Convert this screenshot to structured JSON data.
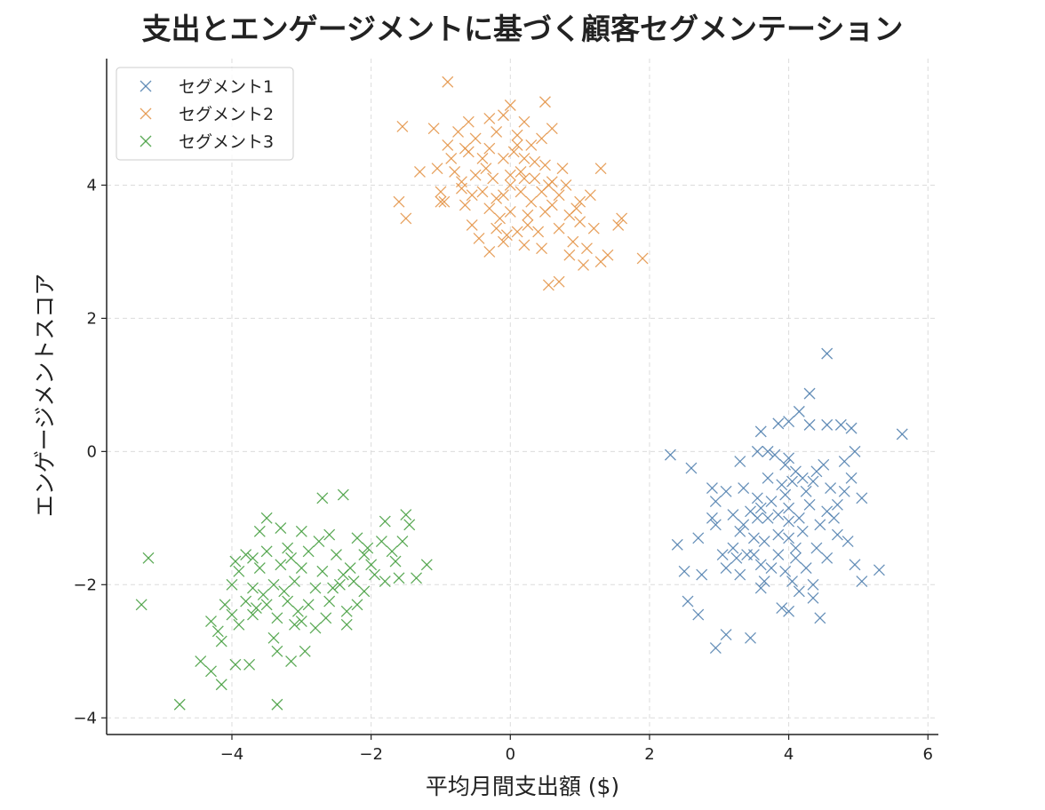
{
  "chart_data": {
    "type": "scatter",
    "title": "支出とエンゲージメントに基づく顧客セグメンテーション",
    "xlabel": "平均月間支出額 ($)",
    "ylabel": "エンゲージメントスコア",
    "xlim": [
      -5.8,
      6.15
    ],
    "ylim": [
      -4.25,
      5.9
    ],
    "xticks": [
      -4,
      -2,
      0,
      2,
      4,
      6
    ],
    "xtick_labels": [
      "−4",
      "−2",
      "0",
      "2",
      "4",
      "6"
    ],
    "yticks": [
      -4,
      -2,
      0,
      2,
      4
    ],
    "ytick_labels": [
      "−4",
      "−2",
      "0",
      "2",
      "4"
    ],
    "grid": true,
    "marker": "x",
    "legend_position": "upper-left",
    "series": [
      {
        "name": "セグメント1",
        "color": "#4c7cad",
        "points": [
          [
            4.55,
            1.47
          ],
          [
            5.63,
            0.26
          ],
          [
            4.3,
            0.87
          ],
          [
            4.15,
            0.6
          ],
          [
            3.6,
            0.3
          ],
          [
            3.85,
            0.42
          ],
          [
            4.0,
            0.45
          ],
          [
            4.3,
            0.4
          ],
          [
            4.55,
            0.4
          ],
          [
            4.75,
            0.4
          ],
          [
            4.9,
            0.35
          ],
          [
            2.3,
            -0.05
          ],
          [
            2.6,
            -0.25
          ],
          [
            3.55,
            0.0
          ],
          [
            3.7,
            0.0
          ],
          [
            3.8,
            -0.05
          ],
          [
            4.0,
            -0.1
          ],
          [
            3.95,
            -0.2
          ],
          [
            4.1,
            -0.3
          ],
          [
            4.5,
            -0.2
          ],
          [
            4.8,
            -0.15
          ],
          [
            4.95,
            0.0
          ],
          [
            2.9,
            -0.55
          ],
          [
            2.95,
            -0.75
          ],
          [
            3.1,
            -0.6
          ],
          [
            3.35,
            -0.55
          ],
          [
            3.55,
            -0.7
          ],
          [
            3.7,
            -0.4
          ],
          [
            3.9,
            -0.5
          ],
          [
            4.05,
            -0.45
          ],
          [
            4.2,
            -0.4
          ],
          [
            4.35,
            -0.45
          ],
          [
            4.6,
            -0.55
          ],
          [
            4.9,
            -0.4
          ],
          [
            5.05,
            -0.7
          ],
          [
            3.2,
            -0.95
          ],
          [
            3.35,
            -1.1
          ],
          [
            3.55,
            -1.0
          ],
          [
            3.7,
            -1.0
          ],
          [
            3.85,
            -0.95
          ],
          [
            4.0,
            -1.05
          ],
          [
            4.15,
            -1.0
          ],
          [
            4.3,
            -0.8
          ],
          [
            4.55,
            -0.9
          ],
          [
            4.7,
            -0.8
          ],
          [
            2.7,
            -1.3
          ],
          [
            2.95,
            -1.1
          ],
          [
            3.3,
            -1.2
          ],
          [
            3.5,
            -1.3
          ],
          [
            3.65,
            -1.35
          ],
          [
            3.85,
            -1.25
          ],
          [
            4.0,
            -1.3
          ],
          [
            4.2,
            -1.2
          ],
          [
            4.4,
            -1.45
          ],
          [
            4.7,
            -1.25
          ],
          [
            4.85,
            -1.35
          ],
          [
            2.4,
            -1.4
          ],
          [
            3.05,
            -1.55
          ],
          [
            3.25,
            -1.6
          ],
          [
            3.4,
            -1.55
          ],
          [
            3.6,
            -1.7
          ],
          [
            3.75,
            -1.75
          ],
          [
            3.95,
            -1.8
          ],
          [
            4.1,
            -1.6
          ],
          [
            4.25,
            -1.75
          ],
          [
            4.55,
            -1.6
          ],
          [
            4.95,
            -1.7
          ],
          [
            2.5,
            -1.8
          ],
          [
            2.75,
            -1.85
          ],
          [
            3.3,
            -1.85
          ],
          [
            3.65,
            -1.95
          ],
          [
            4.05,
            -1.95
          ],
          [
            4.35,
            -2.0
          ],
          [
            5.05,
            -1.95
          ],
          [
            5.3,
            -1.78
          ],
          [
            2.55,
            -2.25
          ],
          [
            2.7,
            -2.45
          ],
          [
            3.9,
            -2.35
          ],
          [
            4.0,
            -2.4
          ],
          [
            4.35,
            -2.2
          ],
          [
            4.45,
            -2.5
          ],
          [
            3.1,
            -2.75
          ],
          [
            2.95,
            -2.95
          ],
          [
            3.45,
            -2.8
          ],
          [
            3.3,
            -0.15
          ],
          [
            3.95,
            -0.65
          ],
          [
            3.6,
            -0.85
          ],
          [
            4.45,
            -1.1
          ],
          [
            3.1,
            -1.75
          ],
          [
            3.5,
            -1.55
          ],
          [
            4.25,
            -0.6
          ],
          [
            3.75,
            -0.75
          ],
          [
            4.65,
            -1.0
          ],
          [
            4.1,
            -1.45
          ],
          [
            3.45,
            -0.9
          ],
          [
            4.0,
            -0.85
          ],
          [
            3.2,
            -1.45
          ],
          [
            4.8,
            -0.6
          ],
          [
            2.9,
            -1.0
          ],
          [
            3.85,
            -1.55
          ],
          [
            4.15,
            -2.1
          ],
          [
            4.4,
            -0.3
          ],
          [
            3.6,
            -2.05
          ]
        ]
      },
      {
        "name": "セグメント2",
        "color": "#e39142",
        "points": [
          [
            -0.9,
            5.55
          ],
          [
            -1.55,
            4.88
          ],
          [
            0.0,
            5.2
          ],
          [
            0.5,
            5.25
          ],
          [
            -0.1,
            5.05
          ],
          [
            -0.3,
            5.0
          ],
          [
            -0.6,
            4.95
          ],
          [
            0.2,
            4.95
          ],
          [
            0.6,
            4.85
          ],
          [
            -1.1,
            4.85
          ],
          [
            -0.75,
            4.8
          ],
          [
            -0.5,
            4.7
          ],
          [
            -0.2,
            4.8
          ],
          [
            0.1,
            4.75
          ],
          [
            0.3,
            4.6
          ],
          [
            -0.9,
            4.6
          ],
          [
            -0.6,
            4.5
          ],
          [
            -0.4,
            4.4
          ],
          [
            -0.1,
            4.4
          ],
          [
            0.2,
            4.4
          ],
          [
            0.5,
            4.3
          ],
          [
            1.3,
            4.25
          ],
          [
            -1.3,
            4.2
          ],
          [
            -1.05,
            4.25
          ],
          [
            -0.8,
            4.2
          ],
          [
            -0.5,
            4.15
          ],
          [
            -0.25,
            4.1
          ],
          [
            0.0,
            4.15
          ],
          [
            0.2,
            4.1
          ],
          [
            0.35,
            4.1
          ],
          [
            0.6,
            4.05
          ],
          [
            0.8,
            4.0
          ],
          [
            -1.0,
            3.9
          ],
          [
            -0.7,
            3.95
          ],
          [
            -0.4,
            3.9
          ],
          [
            -0.1,
            3.85
          ],
          [
            0.15,
            3.9
          ],
          [
            0.45,
            3.9
          ],
          [
            0.7,
            3.85
          ],
          [
            1.0,
            3.75
          ],
          [
            1.15,
            3.85
          ],
          [
            -1.6,
            3.75
          ],
          [
            -1.5,
            3.5
          ],
          [
            -1.0,
            3.75
          ],
          [
            -0.65,
            3.7
          ],
          [
            -0.3,
            3.65
          ],
          [
            0.0,
            3.6
          ],
          [
            0.25,
            3.55
          ],
          [
            0.5,
            3.6
          ],
          [
            0.85,
            3.55
          ],
          [
            1.0,
            3.45
          ],
          [
            1.6,
            3.5
          ],
          [
            1.55,
            3.4
          ],
          [
            -0.55,
            3.4
          ],
          [
            -0.2,
            3.35
          ],
          [
            0.1,
            3.3
          ],
          [
            0.4,
            3.3
          ],
          [
            0.7,
            3.35
          ],
          [
            1.2,
            3.35
          ],
          [
            -0.45,
            3.2
          ],
          [
            -0.1,
            3.15
          ],
          [
            0.2,
            3.1
          ],
          [
            0.9,
            3.15
          ],
          [
            1.1,
            3.05
          ],
          [
            -0.3,
            3.0
          ],
          [
            0.45,
            3.05
          ],
          [
            0.85,
            2.95
          ],
          [
            1.4,
            2.95
          ],
          [
            1.9,
            2.9
          ],
          [
            1.05,
            2.8
          ],
          [
            1.3,
            2.85
          ],
          [
            0.7,
            2.55
          ],
          [
            0.55,
            2.5
          ],
          [
            -0.85,
            4.4
          ],
          [
            -0.3,
            4.55
          ],
          [
            0.05,
            4.5
          ],
          [
            0.35,
            4.35
          ],
          [
            -0.7,
            4.05
          ],
          [
            0.0,
            4.0
          ],
          [
            0.3,
            3.75
          ],
          [
            -0.15,
            3.5
          ],
          [
            0.6,
            3.7
          ],
          [
            -0.55,
            3.85
          ],
          [
            0.15,
            4.2
          ],
          [
            -0.35,
            4.25
          ],
          [
            0.45,
            4.7
          ],
          [
            -0.95,
            3.75
          ],
          [
            0.95,
            3.65
          ],
          [
            -0.2,
            3.8
          ],
          [
            0.75,
            4.25
          ],
          [
            -0.65,
            4.55
          ],
          [
            0.25,
            3.4
          ],
          [
            0.55,
            4.0
          ],
          [
            -0.05,
            3.25
          ],
          [
            0.1,
            4.6
          ]
        ]
      },
      {
        "name": "セグメント3",
        "color": "#3f9b3a",
        "points": [
          [
            -5.2,
            -1.6
          ],
          [
            -5.3,
            -2.3
          ],
          [
            -4.75,
            -3.8
          ],
          [
            -3.35,
            -3.8
          ],
          [
            -2.4,
            -0.65
          ],
          [
            -2.7,
            -0.7
          ],
          [
            -1.5,
            -0.95
          ],
          [
            -3.5,
            -1.0
          ],
          [
            -1.45,
            -1.1
          ],
          [
            -3.0,
            -1.2
          ],
          [
            -3.3,
            -1.15
          ],
          [
            -2.6,
            -1.25
          ],
          [
            -2.2,
            -1.3
          ],
          [
            -1.8,
            -1.05
          ],
          [
            -1.55,
            -1.35
          ],
          [
            -1.2,
            -1.7
          ],
          [
            -3.8,
            -1.55
          ],
          [
            -3.5,
            -1.5
          ],
          [
            -3.2,
            -1.45
          ],
          [
            -2.9,
            -1.5
          ],
          [
            -2.5,
            -1.55
          ],
          [
            -2.1,
            -1.55
          ],
          [
            -1.7,
            -1.5
          ],
          [
            -1.35,
            -1.9
          ],
          [
            -3.9,
            -1.8
          ],
          [
            -3.6,
            -1.75
          ],
          [
            -3.3,
            -1.7
          ],
          [
            -3.0,
            -1.75
          ],
          [
            -2.7,
            -1.8
          ],
          [
            -2.3,
            -1.75
          ],
          [
            -1.95,
            -1.85
          ],
          [
            -1.6,
            -1.9
          ],
          [
            -4.0,
            -2.0
          ],
          [
            -3.7,
            -2.05
          ],
          [
            -3.4,
            -2.0
          ],
          [
            -3.1,
            -1.95
          ],
          [
            -2.8,
            -2.05
          ],
          [
            -2.45,
            -2.0
          ],
          [
            -2.1,
            -2.1
          ],
          [
            -3.8,
            -2.25
          ],
          [
            -3.5,
            -2.3
          ],
          [
            -3.2,
            -2.25
          ],
          [
            -2.9,
            -2.3
          ],
          [
            -2.6,
            -2.25
          ],
          [
            -2.2,
            -2.3
          ],
          [
            -4.0,
            -2.45
          ],
          [
            -3.7,
            -2.45
          ],
          [
            -3.35,
            -2.5
          ],
          [
            -3.0,
            -2.55
          ],
          [
            -2.65,
            -2.5
          ],
          [
            -2.35,
            -2.4
          ],
          [
            -4.3,
            -2.55
          ],
          [
            -4.2,
            -2.7
          ],
          [
            -3.9,
            -2.6
          ],
          [
            -3.1,
            -2.6
          ],
          [
            -2.8,
            -2.65
          ],
          [
            -4.15,
            -2.85
          ],
          [
            -3.4,
            -2.8
          ],
          [
            -2.95,
            -3.0
          ],
          [
            -3.35,
            -3.0
          ],
          [
            -3.15,
            -3.15
          ],
          [
            -4.45,
            -3.15
          ],
          [
            -4.3,
            -3.3
          ],
          [
            -3.95,
            -3.2
          ],
          [
            -3.75,
            -3.2
          ],
          [
            -4.15,
            -3.5
          ],
          [
            -3.6,
            -1.2
          ],
          [
            -3.7,
            -1.6
          ],
          [
            -2.4,
            -1.85
          ],
          [
            -1.85,
            -1.35
          ],
          [
            -2.0,
            -1.7
          ],
          [
            -3.25,
            -2.1
          ],
          [
            -2.55,
            -2.05
          ],
          [
            -3.55,
            -2.15
          ],
          [
            -1.8,
            -1.95
          ],
          [
            -2.75,
            -1.35
          ],
          [
            -3.95,
            -1.65
          ],
          [
            -3.15,
            -1.6
          ],
          [
            -2.35,
            -2.6
          ],
          [
            -3.65,
            -2.35
          ],
          [
            -2.05,
            -1.45
          ],
          [
            -1.65,
            -1.65
          ],
          [
            -3.05,
            -2.4
          ],
          [
            -2.25,
            -1.95
          ],
          [
            -4.1,
            -2.3
          ]
        ]
      }
    ]
  }
}
